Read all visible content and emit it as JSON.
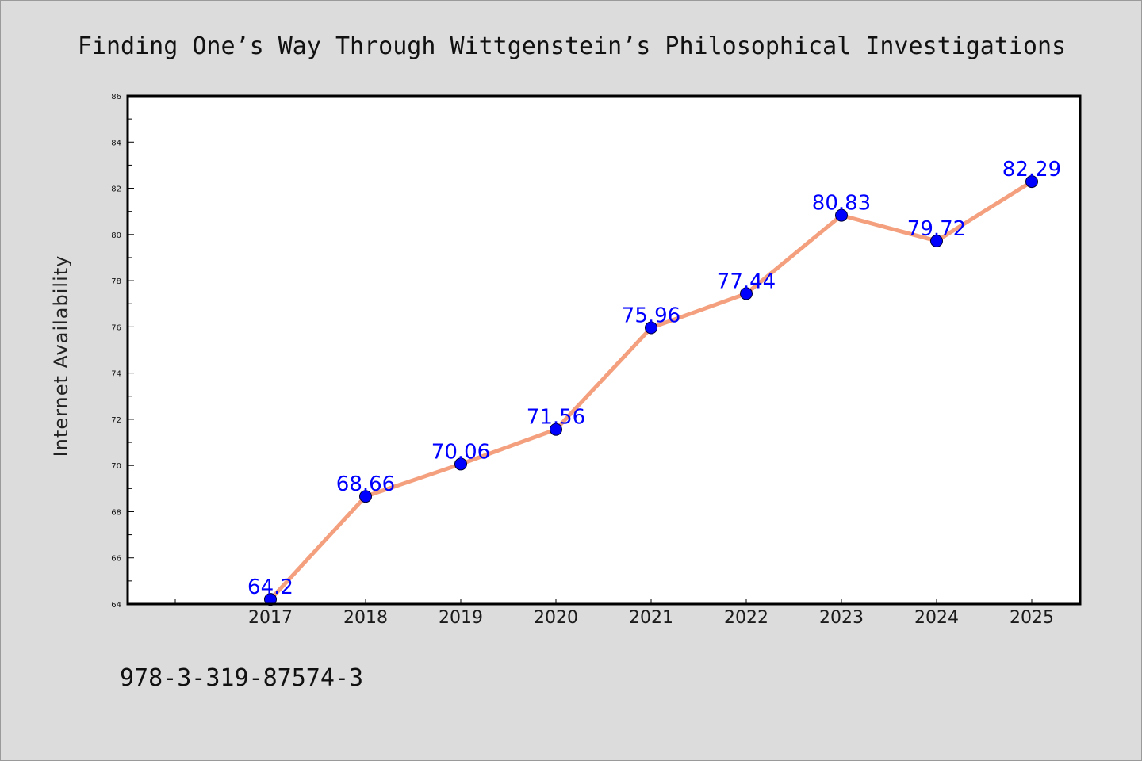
{
  "colors": {
    "background": "#dcdcdc",
    "plot_background": "#ffffff",
    "line": "#f4a07e",
    "marker": "#0000ff",
    "data_label": "#0000ff",
    "frame": "#000000"
  },
  "footer": {
    "isbn": "978-3-319-87574-3"
  },
  "chart_data": {
    "type": "line",
    "title": "Finding One’s Way Through Wittgenstein’s Philosophical Investigations",
    "xlabel": "",
    "ylabel": "Internet Availability",
    "categories": [
      "2017",
      "2018",
      "2019",
      "2020",
      "2021",
      "2022",
      "2023",
      "2024",
      "2025"
    ],
    "category_slots": 10,
    "first_category_slot": 1,
    "values": [
      64.2,
      68.66,
      70.06,
      71.56,
      75.96,
      77.44,
      80.83,
      79.72,
      82.29
    ],
    "data_labels": [
      "64.2",
      "68.66",
      "70.06",
      "71.56",
      "75.96",
      "77.44",
      "80.83",
      "79.72",
      "82.29"
    ],
    "ylim": [
      64,
      86
    ],
    "yticks": [
      "64",
      "66",
      "68",
      "70",
      "72",
      "74",
      "76",
      "78",
      "80",
      "82",
      "84",
      "86"
    ],
    "grid": false,
    "legend": "none"
  }
}
